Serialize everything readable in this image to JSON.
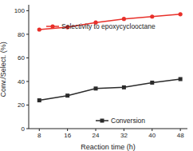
{
  "chart_data": {
    "type": "line",
    "x_label": "Reaction time (h)",
    "y_label": "Conv./Select. (%)",
    "x": [
      8,
      16,
      24,
      32,
      40,
      48
    ],
    "xlim": [
      5,
      50
    ],
    "xticks": [
      8,
      16,
      24,
      32,
      40,
      48
    ],
    "ylim": [
      0,
      105
    ],
    "yticks": [
      0,
      20,
      40,
      60,
      80,
      100
    ],
    "grid": false,
    "series": [
      {
        "name": "Selectivity to epoxycyclooctane",
        "color": "#e8302a",
        "marker": "circle",
        "values": [
          84,
          86,
          90,
          93,
          95,
          97
        ]
      },
      {
        "name": "Conversion",
        "color": "#2b2b2b",
        "marker": "square",
        "values": [
          24,
          28,
          34,
          35,
          39,
          42
        ]
      }
    ]
  }
}
